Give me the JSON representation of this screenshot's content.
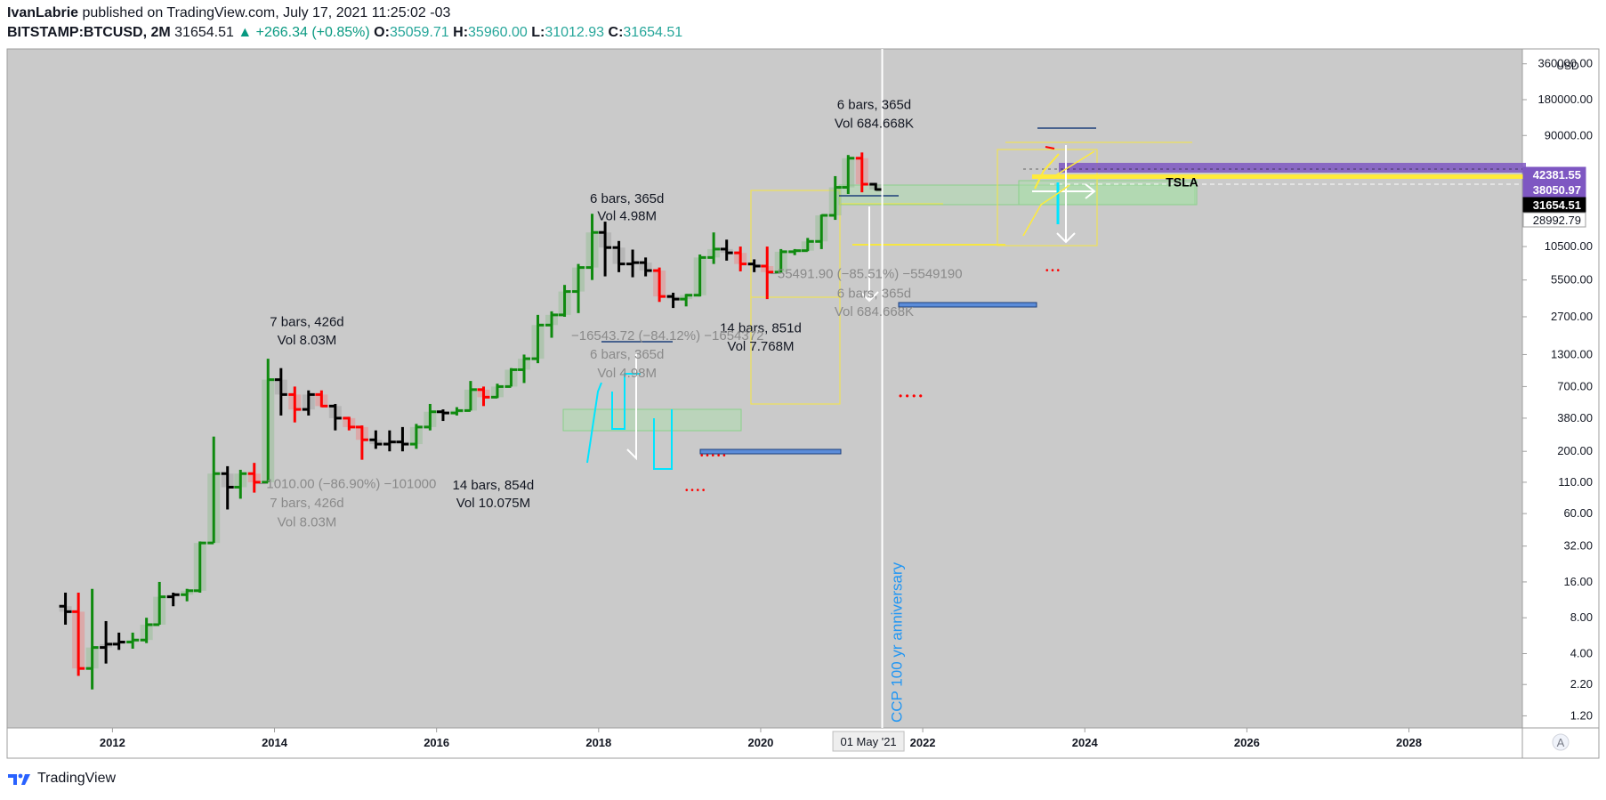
{
  "header": {
    "author": "IvanLabrie",
    "published_text": "published on TradingView.com, July 17, 2021 11:25:02 -03",
    "symbol": "BITSTAMP:BTCUSD, 2M",
    "last": "31654.51",
    "change": "▲ +266.34 (+0.85%)",
    "o_label": "O:",
    "o_value": "35059.71",
    "h_label": "H:",
    "h_value": "35960.00",
    "l_label": "L:",
    "l_value": "31012.93",
    "c_label": "C:",
    "c_value": "31654.51"
  },
  "footer": {
    "brand": "TradingView"
  },
  "colors": {
    "up": "#0f8a0f",
    "down": "#ff0000",
    "neutral": "#000000",
    "bg": "#cacaca",
    "accent": "#7e57c2"
  },
  "chart_data": {
    "type": "bar",
    "title": "BITSTAMP:BTCUSD, 2M",
    "scale": "log",
    "ylim": [
      0.95,
      480000
    ],
    "xlim": [
      2010.7,
      2029.4
    ],
    "axis_unit": "USD",
    "y_ticks": [
      "1.20",
      "2.20",
      "4.00",
      "8.00",
      "16.00",
      "32.00",
      "60.00",
      "110.00",
      "200.00",
      "380.00",
      "700.00",
      "1300.00",
      "2700.00",
      "5500.00",
      "10500.00",
      "90000.00",
      "180000.00",
      "360000.00"
    ],
    "y_tick_values": [
      1.2,
      2.2,
      4,
      8,
      16,
      32,
      60,
      110,
      200,
      380,
      700,
      1300,
      2700,
      5500,
      10500,
      90000,
      180000,
      360000
    ],
    "x_ticks": [
      "2012",
      "2014",
      "2016",
      "2018",
      "2020",
      "2022",
      "2024",
      "2026",
      "2028"
    ],
    "x_tick_values": [
      2012,
      2014,
      2016,
      2018,
      2020,
      2022,
      2024,
      2026,
      2028
    ],
    "price_labels": [
      {
        "text": "42381.55",
        "value": 42381.55,
        "kind": "purple"
      },
      {
        "text": "38050.97",
        "value": 38050.97,
        "kind": "purple"
      },
      {
        "text": "31654.51",
        "value": 31654.51,
        "kind": "black"
      },
      {
        "text": "28992.79",
        "value": 28992.79,
        "kind": "white"
      }
    ],
    "date_label": {
      "text": "01 May '21",
      "t": 2021.33
    },
    "candles": [
      {
        "t": 2011.42,
        "o": 10,
        "h": 13,
        "l": 7,
        "c": 9,
        "d": "neutral"
      },
      {
        "t": 2011.58,
        "o": 9,
        "h": 13,
        "l": 2.6,
        "c": 3,
        "d": "down"
      },
      {
        "t": 2011.75,
        "o": 3,
        "h": 14,
        "l": 2,
        "c": 4.5,
        "d": "up"
      },
      {
        "t": 2011.92,
        "o": 4.5,
        "h": 7.5,
        "l": 3.3,
        "c": 4.8,
        "d": "neutral"
      },
      {
        "t": 2012.08,
        "o": 4.8,
        "h": 6,
        "l": 4.3,
        "c": 5,
        "d": "neutral"
      },
      {
        "t": 2012.25,
        "o": 5,
        "h": 6,
        "l": 4.4,
        "c": 5.2,
        "d": "up"
      },
      {
        "t": 2012.42,
        "o": 5.2,
        "h": 8,
        "l": 4.9,
        "c": 7,
        "d": "up"
      },
      {
        "t": 2012.58,
        "o": 7,
        "h": 16,
        "l": 7,
        "c": 12,
        "d": "up"
      },
      {
        "t": 2012.75,
        "o": 12,
        "h": 13,
        "l": 10,
        "c": 12.5,
        "d": "neutral"
      },
      {
        "t": 2012.92,
        "o": 12.5,
        "h": 14,
        "l": 11,
        "c": 13.5,
        "d": "up"
      },
      {
        "t": 2013.08,
        "o": 13.5,
        "h": 35,
        "l": 13,
        "c": 34,
        "d": "up"
      },
      {
        "t": 2013.25,
        "o": 34,
        "h": 266,
        "l": 34,
        "c": 130,
        "d": "up"
      },
      {
        "t": 2013.42,
        "o": 130,
        "h": 150,
        "l": 65,
        "c": 100,
        "d": "neutral"
      },
      {
        "t": 2013.58,
        "o": 100,
        "h": 140,
        "l": 80,
        "c": 130,
        "d": "up"
      },
      {
        "t": 2013.75,
        "o": 130,
        "h": 160,
        "l": 90,
        "c": 110,
        "d": "down"
      },
      {
        "t": 2013.92,
        "o": 110,
        "h": 1200,
        "l": 110,
        "c": 800,
        "d": "up"
      },
      {
        "t": 2014.08,
        "o": 800,
        "h": 1000,
        "l": 400,
        "c": 600,
        "d": "neutral"
      },
      {
        "t": 2014.25,
        "o": 600,
        "h": 700,
        "l": 350,
        "c": 450,
        "d": "down"
      },
      {
        "t": 2014.42,
        "o": 450,
        "h": 650,
        "l": 400,
        "c": 600,
        "d": "neutral"
      },
      {
        "t": 2014.58,
        "o": 600,
        "h": 650,
        "l": 470,
        "c": 480,
        "d": "down"
      },
      {
        "t": 2014.75,
        "o": 480,
        "h": 500,
        "l": 300,
        "c": 380,
        "d": "neutral"
      },
      {
        "t": 2014.92,
        "o": 380,
        "h": 390,
        "l": 300,
        "c": 320,
        "d": "down"
      },
      {
        "t": 2015.08,
        "o": 320,
        "h": 330,
        "l": 170,
        "c": 250,
        "d": "down"
      },
      {
        "t": 2015.25,
        "o": 250,
        "h": 300,
        "l": 210,
        "c": 230,
        "d": "neutral"
      },
      {
        "t": 2015.42,
        "o": 230,
        "h": 300,
        "l": 200,
        "c": 240,
        "d": "neutral"
      },
      {
        "t": 2015.58,
        "o": 240,
        "h": 320,
        "l": 200,
        "c": 230,
        "d": "neutral"
      },
      {
        "t": 2015.75,
        "o": 230,
        "h": 340,
        "l": 210,
        "c": 320,
        "d": "up"
      },
      {
        "t": 2015.92,
        "o": 320,
        "h": 500,
        "l": 300,
        "c": 430,
        "d": "up"
      },
      {
        "t": 2016.08,
        "o": 430,
        "h": 450,
        "l": 360,
        "c": 420,
        "d": "neutral"
      },
      {
        "t": 2016.25,
        "o": 420,
        "h": 470,
        "l": 400,
        "c": 440,
        "d": "up"
      },
      {
        "t": 2016.42,
        "o": 440,
        "h": 780,
        "l": 440,
        "c": 660,
        "d": "up"
      },
      {
        "t": 2016.58,
        "o": 660,
        "h": 700,
        "l": 480,
        "c": 570,
        "d": "down"
      },
      {
        "t": 2016.75,
        "o": 570,
        "h": 740,
        "l": 560,
        "c": 700,
        "d": "up"
      },
      {
        "t": 2016.92,
        "o": 700,
        "h": 1000,
        "l": 700,
        "c": 970,
        "d": "up"
      },
      {
        "t": 2017.08,
        "o": 970,
        "h": 1300,
        "l": 750,
        "c": 1200,
        "d": "up"
      },
      {
        "t": 2017.25,
        "o": 1200,
        "h": 2800,
        "l": 1100,
        "c": 2300,
        "d": "up"
      },
      {
        "t": 2017.42,
        "o": 2300,
        "h": 3000,
        "l": 1800,
        "c": 2800,
        "d": "up"
      },
      {
        "t": 2017.58,
        "o": 2800,
        "h": 5000,
        "l": 2700,
        "c": 4400,
        "d": "up"
      },
      {
        "t": 2017.75,
        "o": 4400,
        "h": 7500,
        "l": 2900,
        "c": 7000,
        "d": "up"
      },
      {
        "t": 2017.92,
        "o": 7000,
        "h": 19800,
        "l": 5500,
        "c": 13800,
        "d": "up"
      },
      {
        "t": 2018.08,
        "o": 13800,
        "h": 17000,
        "l": 5900,
        "c": 10300,
        "d": "neutral"
      },
      {
        "t": 2018.25,
        "o": 10300,
        "h": 11700,
        "l": 6400,
        "c": 7500,
        "d": "neutral"
      },
      {
        "t": 2018.42,
        "o": 7500,
        "h": 9900,
        "l": 5800,
        "c": 7700,
        "d": "neutral"
      },
      {
        "t": 2018.58,
        "o": 7700,
        "h": 8500,
        "l": 5900,
        "c": 6600,
        "d": "neutral"
      },
      {
        "t": 2018.75,
        "o": 6600,
        "h": 7000,
        "l": 3600,
        "c": 4000,
        "d": "down"
      },
      {
        "t": 2018.92,
        "o": 4000,
        "h": 4300,
        "l": 3200,
        "c": 3800,
        "d": "neutral"
      },
      {
        "t": 2019.08,
        "o": 3800,
        "h": 4200,
        "l": 3300,
        "c": 4100,
        "d": "up"
      },
      {
        "t": 2019.25,
        "o": 4100,
        "h": 9000,
        "l": 4000,
        "c": 8500,
        "d": "up"
      },
      {
        "t": 2019.42,
        "o": 8500,
        "h": 13800,
        "l": 7500,
        "c": 10000,
        "d": "up"
      },
      {
        "t": 2019.58,
        "o": 10000,
        "h": 12000,
        "l": 8000,
        "c": 9300,
        "d": "neutral"
      },
      {
        "t": 2019.75,
        "o": 9300,
        "h": 10500,
        "l": 6500,
        "c": 7500,
        "d": "down"
      },
      {
        "t": 2019.92,
        "o": 7500,
        "h": 8200,
        "l": 6400,
        "c": 7200,
        "d": "neutral"
      },
      {
        "t": 2020.08,
        "o": 7200,
        "h": 10500,
        "l": 3800,
        "c": 6400,
        "d": "down"
      },
      {
        "t": 2020.25,
        "o": 6400,
        "h": 10000,
        "l": 6300,
        "c": 9500,
        "d": "up"
      },
      {
        "t": 2020.42,
        "o": 9500,
        "h": 10000,
        "l": 8900,
        "c": 9700,
        "d": "up"
      },
      {
        "t": 2020.58,
        "o": 9700,
        "h": 12400,
        "l": 9600,
        "c": 11600,
        "d": "up"
      },
      {
        "t": 2020.75,
        "o": 11600,
        "h": 19500,
        "l": 10000,
        "c": 19200,
        "d": "up"
      },
      {
        "t": 2020.92,
        "o": 19200,
        "h": 41000,
        "l": 17600,
        "c": 33000,
        "d": "up"
      },
      {
        "t": 2021.08,
        "o": 33000,
        "h": 61700,
        "l": 29000,
        "c": 58000,
        "d": "up"
      },
      {
        "t": 2021.25,
        "o": 58000,
        "h": 64800,
        "l": 30000,
        "c": 35059,
        "d": "down"
      },
      {
        "t": 2021.42,
        "o": 35059,
        "h": 35960,
        "l": 31012,
        "c": 31654,
        "d": "neutral"
      }
    ],
    "annotations": [
      {
        "text": "6 bars, 365d",
        "t": 2021.4,
        "v": 150000,
        "style": "dark"
      },
      {
        "text": "Vol 684.668K",
        "t": 2021.4,
        "v": 105000,
        "style": "dark"
      },
      {
        "text": "6 bars, 365d",
        "t": 2018.35,
        "v": 24500,
        "style": "dark"
      },
      {
        "text": "Vol 4.98M",
        "t": 2018.35,
        "v": 17500,
        "style": "dark"
      },
      {
        "text": "7 bars, 426d",
        "t": 2014.4,
        "v": 2250,
        "style": "dark"
      },
      {
        "text": "Vol 8.03M",
        "t": 2014.4,
        "v": 1580,
        "style": "dark"
      },
      {
        "text": "14 bars, 851d",
        "t": 2020.0,
        "v": 2000,
        "style": "dark"
      },
      {
        "text": "Vol 7.768M",
        "t": 2020.0,
        "v": 1400,
        "style": "dark"
      },
      {
        "text": "14 bars, 854d",
        "t": 2016.7,
        "v": 96,
        "style": "dark"
      },
      {
        "text": "Vol 10.075M",
        "t": 2016.7,
        "v": 68,
        "style": "dark"
      },
      {
        "text": "−55491.90 (−85.51%) −5549190",
        "t": 2021.3,
        "v": 5700,
        "style": "faint"
      },
      {
        "text": "6 bars, 365d",
        "t": 2021.4,
        "v": 3900,
        "style": "faint"
      },
      {
        "text": "Vol 684.668K",
        "t": 2021.4,
        "v": 2750,
        "style": "faint"
      },
      {
        "text": "−16543.72 (−84.12%) −1654372",
        "t": 2018.85,
        "v": 1720,
        "style": "faint"
      },
      {
        "text": "6 bars, 365d",
        "t": 2018.35,
        "v": 1200,
        "style": "faint"
      },
      {
        "text": "Vol 4.98M",
        "t": 2018.35,
        "v": 840,
        "style": "faint"
      },
      {
        "text": "−1010.00 (−86.90%) −101000",
        "t": 2014.9,
        "v": 98,
        "style": "faint"
      },
      {
        "text": "7 bars, 426d",
        "t": 2014.4,
        "v": 68,
        "style": "faint"
      },
      {
        "text": "Vol 8.03M",
        "t": 2014.4,
        "v": 47,
        "style": "faint"
      }
    ],
    "tsla_label": {
      "text": "TSLA",
      "t": 2025.2,
      "v": 33500
    },
    "vertical_note": {
      "text": "CCP 100 yr anniversary",
      "t": 2021.5
    }
  }
}
